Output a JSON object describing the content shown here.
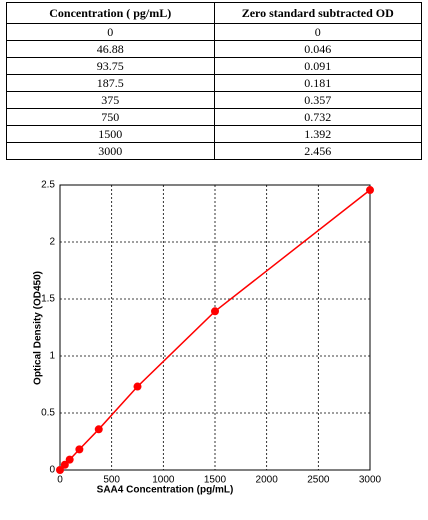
{
  "table": {
    "header": [
      "Concentration ( pg/mL)",
      "Zero standard subtracted OD"
    ],
    "rows": [
      [
        "0",
        "0"
      ],
      [
        "46.88",
        "0.046"
      ],
      [
        "93.75",
        "0.091"
      ],
      [
        "187.5",
        "0.181"
      ],
      [
        "375",
        "0.357"
      ],
      [
        "750",
        "0.732"
      ],
      [
        "1500",
        "1.392"
      ],
      [
        "3000",
        "2.456"
      ]
    ]
  },
  "chart_data": {
    "type": "scatter",
    "xlabel": "SAA4 Concentration (pg/mL)",
    "ylabel": "Optical Density (OD450)",
    "x": [
      0,
      46.88,
      93.75,
      187.5,
      375,
      750,
      1500,
      3000
    ],
    "series": [
      {
        "values": [
          0,
          0.046,
          0.091,
          0.181,
          0.357,
          0.732,
          1.392,
          2.456
        ],
        "color": "#ff0000"
      }
    ],
    "xlim": [
      0,
      3000
    ],
    "xticks": [
      0,
      500,
      1000,
      1500,
      2000,
      2500,
      3000
    ],
    "ylim": [
      0,
      2.5
    ],
    "yticks": [
      0,
      0.5,
      1,
      1.5,
      2,
      2.5
    ],
    "grid": true
  }
}
